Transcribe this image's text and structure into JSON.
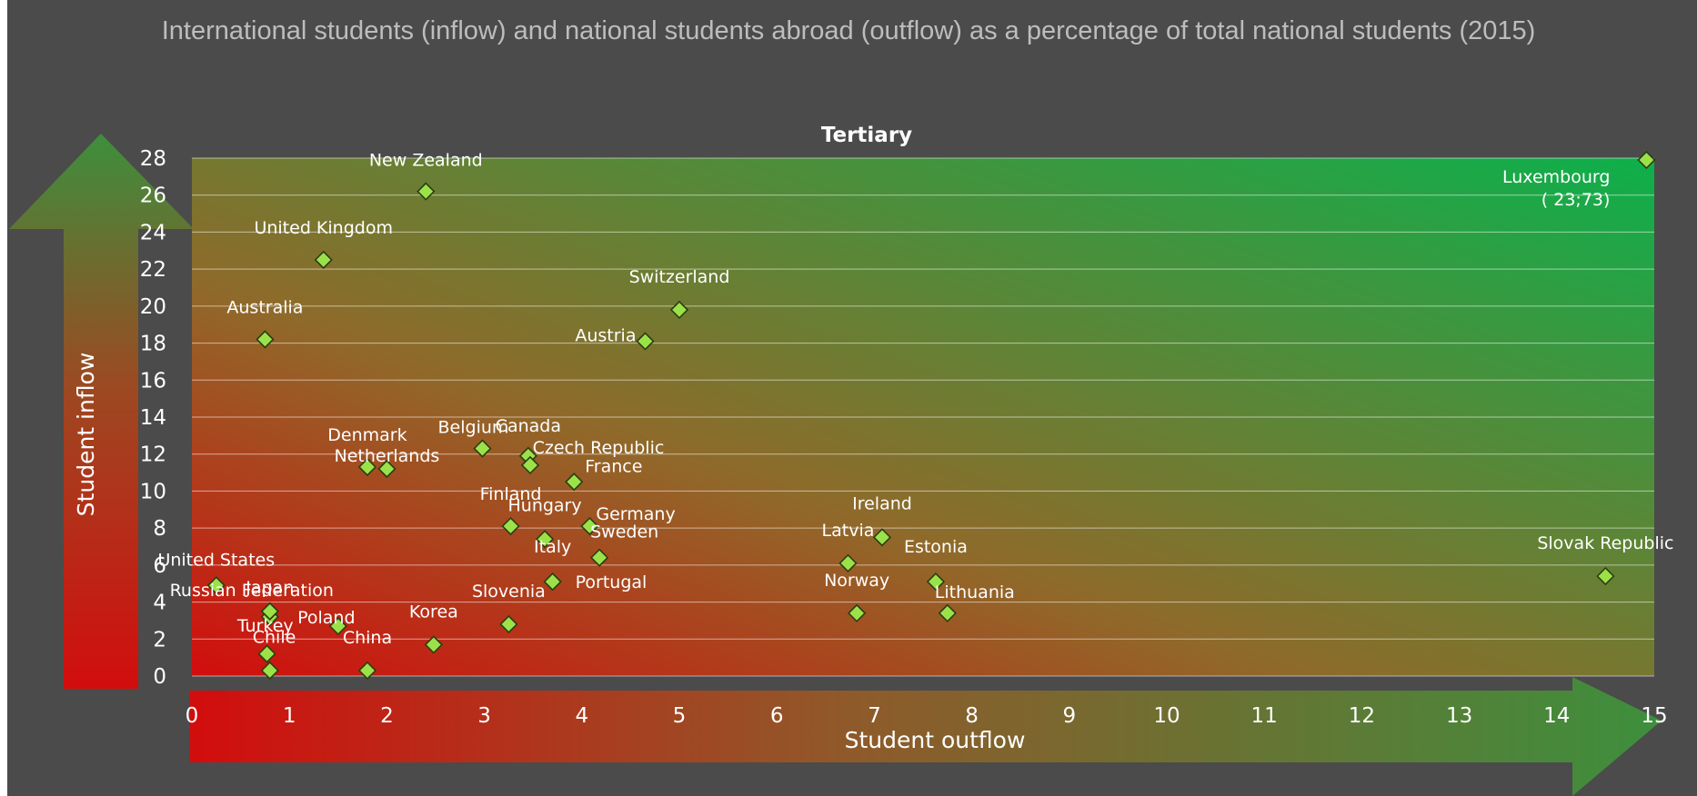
{
  "title": "International students (inflow) and national students abroad (outflow) as a percentage of total national students (2015)",
  "chart_data": {
    "type": "scatter",
    "title": "Tertiary",
    "xlabel": "Student outflow",
    "ylabel": "Student inflow",
    "xlim": [
      0,
      15
    ],
    "ylim": [
      0,
      28
    ],
    "x_ticks": [
      "0",
      "1",
      "2",
      "3",
      "4",
      "5",
      "6",
      "7",
      "8",
      "9",
      "10",
      "11",
      "12",
      "13",
      "14",
      "15"
    ],
    "y_ticks": [
      "0",
      "2",
      "4",
      "6",
      "8",
      "10",
      "12",
      "14",
      "16",
      "18",
      "20",
      "22",
      "24",
      "26",
      "28"
    ],
    "grid": true,
    "background_gradient": {
      "from": "#d20d0d",
      "mid": "#8f6a2a",
      "to": "#0db04b"
    },
    "arrow_color": "#3d8f3d",
    "marker_color": "#9be24a",
    "points": [
      {
        "label": "New Zealand",
        "x": 2.4,
        "y": 26.2
      },
      {
        "label": "United Kingdom",
        "x": 1.35,
        "y": 22.5
      },
      {
        "label": "Australia",
        "x": 0.75,
        "y": 18.2
      },
      {
        "label": "Switzerland",
        "x": 5.0,
        "y": 19.8
      },
      {
        "label": "Austria",
        "x": 4.65,
        "y": 18.1
      },
      {
        "label": "Luxembourg",
        "x": 14.92,
        "y": 27.9,
        "annotation": "( 23;73)"
      },
      {
        "label": "Denmark",
        "x": 1.8,
        "y": 11.3
      },
      {
        "label": "Netherlands",
        "x": 2.0,
        "y": 11.2
      },
      {
        "label": "Belgium",
        "x": 2.98,
        "y": 12.3
      },
      {
        "label": "Canada",
        "x": 3.45,
        "y": 11.9
      },
      {
        "label": "Czech Republic",
        "x": 3.47,
        "y": 11.4
      },
      {
        "label": "France",
        "x": 3.92,
        "y": 10.5
      },
      {
        "label": "Finland",
        "x": 3.27,
        "y": 8.1
      },
      {
        "label": "Hungary",
        "x": 3.62,
        "y": 7.4
      },
      {
        "label": "Germany",
        "x": 4.08,
        "y": 8.1
      },
      {
        "label": "Sweden",
        "x": 4.18,
        "y": 6.4
      },
      {
        "label": "Italy",
        "x": 3.7,
        "y": 5.1
      },
      {
        "label": "Portugal",
        "x": 3.7,
        "y": 5.1
      },
      {
        "label": "Slovenia",
        "x": 3.25,
        "y": 2.8
      },
      {
        "label": "Korea",
        "x": 2.48,
        "y": 1.7
      },
      {
        "label": "China",
        "x": 1.8,
        "y": 0.3
      },
      {
        "label": "Poland",
        "x": 1.5,
        "y": 2.7
      },
      {
        "label": "Turkey",
        "x": 0.8,
        "y": 3.2
      },
      {
        "label": "Chile",
        "x": 0.77,
        "y": 1.2
      },
      {
        "label": "Chile",
        "x": 0.8,
        "y": 0.3
      },
      {
        "label": "Japan",
        "x": 0.8,
        "y": 3.5
      },
      {
        "label": "Russian Federation",
        "x": 0.8,
        "y": 3.5
      },
      {
        "label": "United States",
        "x": 0.25,
        "y": 4.9
      },
      {
        "label": "Ireland",
        "x": 7.08,
        "y": 7.5
      },
      {
        "label": "Latvia",
        "x": 6.73,
        "y": 6.1
      },
      {
        "label": "Estonia",
        "x": 7.63,
        "y": 5.1
      },
      {
        "label": "Norway",
        "x": 6.82,
        "y": 3.4
      },
      {
        "label": "Lithuania",
        "x": 7.75,
        "y": 3.4
      },
      {
        "label": "Slovak Republic",
        "x": 14.5,
        "y": 5.4
      }
    ]
  }
}
